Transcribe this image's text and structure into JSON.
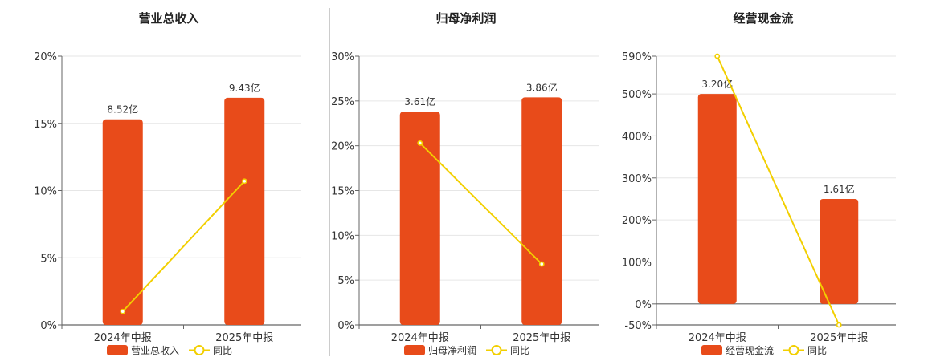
{
  "colors": {
    "bar": "#E84B1A",
    "line": "#F2CF00",
    "grid": "#e6e6e6",
    "axis": "#666666"
  },
  "chart_data": [
    {
      "type": "bar",
      "title": "营业总收入",
      "categories": [
        "2024年中报",
        "2025年中报"
      ],
      "series": [
        {
          "name": "营业总收入",
          "type": "bar",
          "values": [
            8.52,
            9.43
          ],
          "labels": [
            "8.52亿",
            "9.43亿"
          ]
        },
        {
          "name": "同比",
          "type": "line",
          "values": [
            1.0,
            10.7
          ]
        }
      ],
      "yticks": [
        "0%",
        "5%",
        "10%",
        "15%",
        "20%"
      ],
      "ylim": [
        0,
        20
      ],
      "bar_percent": [
        15.3,
        16.9
      ],
      "grid": true,
      "legend": "bottom"
    },
    {
      "type": "bar",
      "title": "归母净利润",
      "categories": [
        "2024年中报",
        "2025年中报"
      ],
      "series": [
        {
          "name": "归母净利润",
          "type": "bar",
          "values": [
            3.61,
            3.86
          ],
          "labels": [
            "3.61亿",
            "3.86亿"
          ]
        },
        {
          "name": "同比",
          "type": "line",
          "values": [
            20.3,
            6.8
          ]
        }
      ],
      "yticks": [
        "0%",
        "5%",
        "10%",
        "15%",
        "20%",
        "25%",
        "30%"
      ],
      "ylim": [
        0,
        30
      ],
      "bar_percent": [
        23.8,
        25.4
      ],
      "grid": true,
      "legend": "bottom"
    },
    {
      "type": "bar",
      "title": "经营现金流",
      "categories": [
        "2024年中报",
        "2025年中报"
      ],
      "series": [
        {
          "name": "经营现金流",
          "type": "bar",
          "values": [
            3.2,
            1.61
          ],
          "labels": [
            "3.20亿",
            "1.61亿"
          ]
        },
        {
          "name": "同比",
          "type": "line",
          "values": [
            590,
            -50
          ]
        }
      ],
      "yticks": [
        "-50%",
        "0%",
        "100%",
        "200%",
        "300%",
        "400%",
        "500%",
        "590%"
      ],
      "ylim": [
        -50,
        590
      ],
      "bar_percent": [
        500,
        250
      ],
      "grid": true,
      "legend": "bottom"
    }
  ]
}
